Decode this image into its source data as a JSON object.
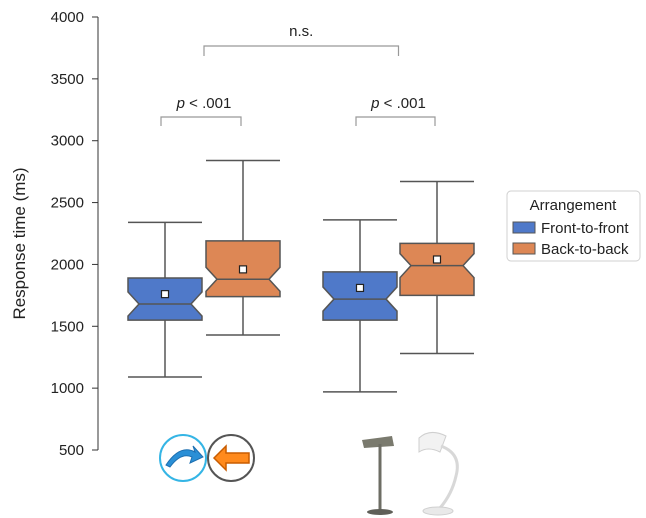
{
  "chart_data": {
    "type": "boxplot",
    "ylabel": "Response time (ms)",
    "ylim": [
      500,
      4000
    ],
    "y_ticks": [
      "500",
      "1000",
      "1500",
      "2000",
      "2500",
      "3000",
      "3500",
      "4000"
    ],
    "y_tick_values": [
      500,
      1000,
      1500,
      2000,
      2500,
      3000,
      3500,
      4000
    ],
    "grid": false,
    "legend": {
      "title": "Arrangement",
      "placement": "right",
      "entries": [
        "Front-to-front",
        "Back-to-back"
      ]
    },
    "colors": {
      "Front-to-front": "#4f79c9",
      "Back-to-back": "#dd8755",
      "edge": "#555555"
    },
    "groups": [
      {
        "icon": "arrows-icon",
        "boxes": [
          {
            "series": "Front-to-front",
            "whisker_low": 1090,
            "q1": 1550,
            "median": 1680,
            "q3": 1890,
            "whisker_high": 2340,
            "mean": 1760
          },
          {
            "series": "Back-to-back",
            "whisker_low": 1430,
            "q1": 1740,
            "median": 1880,
            "q3": 2190,
            "whisker_high": 2840,
            "mean": 1960
          }
        ],
        "bracket_label_prefix": "p",
        "bracket_label_suffix": " < .001"
      },
      {
        "icon": "desk-lamps-icon",
        "boxes": [
          {
            "series": "Front-to-front",
            "whisker_low": 970,
            "q1": 1550,
            "median": 1720,
            "q3": 1940,
            "whisker_high": 2360,
            "mean": 1810
          },
          {
            "series": "Back-to-back",
            "whisker_low": 1280,
            "q1": 1750,
            "median": 1990,
            "q3": 2170,
            "whisker_high": 2670,
            "mean": 2040
          }
        ],
        "bracket_label_prefix": "p",
        "bracket_label_suffix": " < .001"
      }
    ],
    "between_groups_label": "n.s."
  }
}
